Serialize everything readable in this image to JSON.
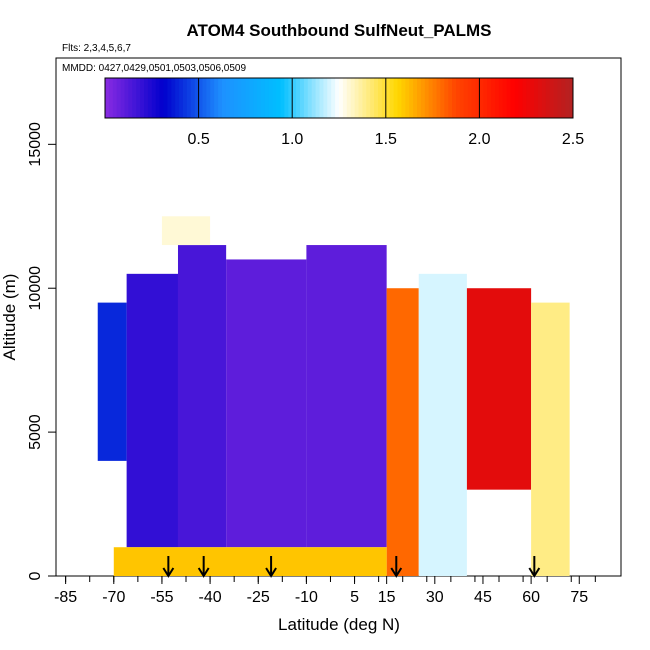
{
  "chart_data": {
    "type": "heatmap",
    "title": "ATOM4 Southbound SulfNeut_PALMS",
    "annotations": [
      "Flts: 2,3,4,5,6,7",
      "MMDD: 0427,0429,0501,0503,0506,0509"
    ],
    "xlabel": "Latitude (deg N)",
    "ylabel": "Altitude (m)",
    "xlim": [
      -88,
      88
    ],
    "ylim": [
      0,
      18000
    ],
    "x_ticks": [
      -85,
      -70,
      -55,
      -40,
      -25,
      -10,
      5,
      15,
      30,
      45,
      60,
      75
    ],
    "x_tick_labels": [
      "-85",
      "-70",
      "-55",
      "-40",
      "-25",
      "-10",
      "5",
      "15",
      "30",
      "45",
      "60",
      "75"
    ],
    "y_ticks": [
      0,
      5000,
      10000,
      15000
    ],
    "y_tick_labels": [
      "0",
      "5000",
      "10000",
      "15000"
    ],
    "colorbar": {
      "range": [
        0,
        2.5
      ],
      "ticks": [
        0.5,
        1.0,
        1.5,
        2.0,
        2.5
      ],
      "tick_labels": [
        "0.5",
        "1.0",
        "1.5",
        "2.0",
        "2.5"
      ],
      "colors": [
        "#8a2be2",
        "#0000cd",
        "#1e90ff",
        "#00bfff",
        "#ffffff",
        "#ffd700",
        "#ff4500",
        "#ff0000",
        "#b22222"
      ]
    },
    "flight_markers_lat": [
      -53,
      -42,
      -21,
      18,
      61
    ],
    "bands": [
      {
        "lat": [
          -75,
          -66
        ],
        "alt": [
          4000,
          9500
        ],
        "level": 0.4
      },
      {
        "lat": [
          -66,
          -50
        ],
        "alt": [
          1000,
          10500
        ],
        "level": 0.2
      },
      {
        "lat": [
          -50,
          -35
        ],
        "alt": [
          1000,
          11500
        ],
        "level": 0.15
      },
      {
        "lat": [
          -35,
          -10
        ],
        "alt": [
          1000,
          11000
        ],
        "level": 0.1
      },
      {
        "lat": [
          -10,
          15
        ],
        "alt": [
          1000,
          11500
        ],
        "level": 0.1
      },
      {
        "lat": [
          15,
          25
        ],
        "alt": [
          0,
          10000
        ],
        "level": 1.8
      },
      {
        "lat": [
          25,
          40
        ],
        "alt": [
          0,
          10500
        ],
        "level": 1.2
      },
      {
        "lat": [
          40,
          60
        ],
        "alt": [
          3000,
          10000
        ],
        "level": 2.3
      },
      {
        "lat": [
          60,
          72
        ],
        "alt": [
          0,
          9500
        ],
        "level": 1.4
      },
      {
        "lat": [
          -55,
          -40
        ],
        "alt": [
          11500,
          12500
        ],
        "level": 1.3
      },
      {
        "lat": [
          -70,
          15
        ],
        "alt": [
          0,
          1000
        ],
        "level": 1.6
      }
    ]
  }
}
